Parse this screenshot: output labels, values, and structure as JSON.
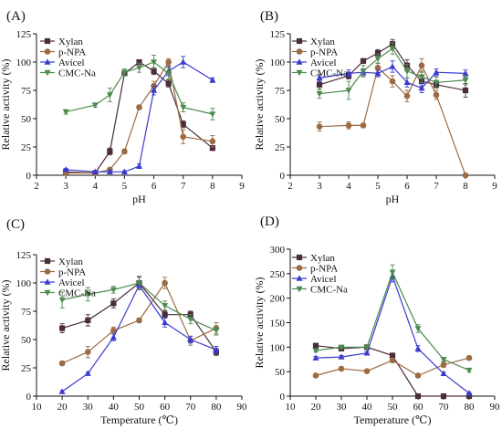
{
  "chart_data": [
    {
      "type": "line",
      "panel_label": "(A)",
      "xlabel": "pH",
      "ylabel": "Relative activity (%)",
      "xlim": [
        2,
        9
      ],
      "ylim": [
        0,
        125
      ],
      "xticks": [
        2,
        3,
        4,
        5,
        6,
        7,
        8,
        9
      ],
      "yticks": [
        0,
        25,
        50,
        75,
        100,
        125
      ],
      "legend_position": "top-left",
      "grid": false,
      "series": [
        {
          "name": "Xylan",
          "color": "#4a2c3a",
          "marker": "square",
          "x": [
            3,
            4,
            4.5,
            5,
            5.5,
            6,
            6.5,
            7,
            8
          ],
          "y": [
            3,
            2,
            21,
            90,
            100,
            92,
            81,
            45,
            24
          ],
          "err": [
            1,
            1,
            3,
            2,
            2,
            3,
            3,
            3,
            2
          ]
        },
        {
          "name": "p-NPA",
          "color": "#9b6b43",
          "marker": "circle",
          "x": [
            3,
            4,
            4.5,
            5,
            5.5,
            6,
            6.5,
            7,
            8
          ],
          "y": [
            2,
            2,
            5,
            21,
            60,
            79,
            100,
            34,
            30
          ],
          "err": [
            1,
            1,
            1,
            2,
            2,
            4,
            3,
            6,
            5
          ]
        },
        {
          "name": "Avicel",
          "color": "#3a3ad0",
          "marker": "triangle-up",
          "x": [
            3,
            4,
            4.5,
            5,
            5.5,
            6,
            6.5,
            7,
            8
          ],
          "y": [
            5,
            3,
            3,
            3,
            8,
            75,
            92,
            100,
            84
          ],
          "err": [
            1,
            1,
            1,
            1,
            2,
            4,
            4,
            5,
            2
          ]
        },
        {
          "name": "CMC-Na",
          "color": "#4d8a4d",
          "marker": "triangle-down",
          "x": [
            3,
            4,
            4.5,
            5,
            5.5,
            6,
            6.5,
            7,
            8
          ],
          "y": [
            56,
            62,
            71,
            91,
            95,
            100,
            90,
            60,
            54
          ],
          "err": [
            2,
            2,
            6,
            3,
            4,
            6,
            5,
            4,
            5
          ]
        }
      ]
    },
    {
      "type": "line",
      "panel_label": "(B)",
      "xlabel": "pH",
      "ylabel": "Relative activity (%)",
      "xlim": [
        2,
        9
      ],
      "ylim": [
        0,
        125
      ],
      "xticks": [
        2,
        3,
        4,
        5,
        6,
        7,
        8,
        9
      ],
      "yticks": [
        0,
        25,
        50,
        75,
        100,
        125
      ],
      "legend_position": "top-left",
      "grid": false,
      "series": [
        {
          "name": "Xylan",
          "color": "#4a2c3a",
          "marker": "square",
          "x": [
            3,
            4,
            4.5,
            5,
            5.5,
            6,
            6.5,
            7,
            8
          ],
          "y": [
            80,
            88,
            101,
            108,
            116,
            97,
            83,
            80,
            75
          ],
          "err": [
            4,
            3,
            2,
            3,
            4,
            5,
            4,
            3,
            6
          ]
        },
        {
          "name": "p-NPA",
          "color": "#9b6b43",
          "marker": "circle",
          "x": [
            3,
            4,
            4.5,
            5,
            5.5,
            6,
            6.5,
            7,
            8
          ],
          "y": [
            43,
            44,
            44,
            95,
            83,
            70,
            97,
            71,
            0
          ],
          "err": [
            4,
            3,
            2,
            4,
            5,
            5,
            6,
            4,
            1
          ]
        },
        {
          "name": "Avicel",
          "color": "#3a3ad0",
          "marker": "triangle-up",
          "x": [
            3,
            4,
            4.5,
            5,
            5.5,
            6,
            6.5,
            7,
            8
          ],
          "y": [
            86,
            90,
            91,
            90,
            96,
            82,
            77,
            91,
            90
          ],
          "err": [
            3,
            3,
            3,
            3,
            5,
            4,
            4,
            3,
            3
          ]
        },
        {
          "name": "CMC-Na",
          "color": "#4d8a4d",
          "marker": "triangle-down",
          "x": [
            3,
            4,
            4.5,
            5,
            5.5,
            6,
            6.5,
            7,
            8
          ],
          "y": [
            72,
            75,
            92,
            103,
            112,
            92,
            87,
            82,
            84
          ],
          "err": [
            4,
            8,
            5,
            4,
            5,
            6,
            5,
            5,
            4
          ]
        }
      ]
    },
    {
      "type": "line",
      "panel_label": "(C)",
      "xlabel": "Temperature (℃)",
      "ylabel": "Relative activity (%)",
      "xlim": [
        10,
        90
      ],
      "ylim": [
        0,
        125
      ],
      "xticks": [
        10,
        20,
        30,
        40,
        50,
        60,
        70,
        80,
        90
      ],
      "yticks": [
        0,
        25,
        50,
        75,
        100,
        125
      ],
      "legend_position": "top-left",
      "grid": false,
      "series": [
        {
          "name": "Xylan",
          "color": "#4a2c3a",
          "marker": "square",
          "x": [
            20,
            30,
            40,
            50,
            60,
            70,
            80
          ],
          "y": [
            60,
            67,
            82,
            100,
            72,
            72,
            39
          ],
          "err": [
            4,
            5,
            4,
            5,
            3,
            3,
            3
          ]
        },
        {
          "name": "p-NPA",
          "color": "#9b6b43",
          "marker": "circle",
          "x": [
            20,
            30,
            40,
            50,
            60,
            70,
            80
          ],
          "y": [
            29,
            39,
            58,
            67,
            100,
            49,
            60
          ],
          "err": [
            2,
            5,
            3,
            2,
            5,
            4,
            5
          ]
        },
        {
          "name": "Avicel",
          "color": "#3a3ad0",
          "marker": "triangle-up",
          "x": [
            20,
            30,
            40,
            50,
            60,
            70,
            80
          ],
          "y": [
            4,
            20,
            52,
            98,
            65,
            50,
            41
          ],
          "err": [
            1,
            1,
            3,
            4,
            4,
            3,
            3
          ]
        },
        {
          "name": "CMC-Na",
          "color": "#4d8a4d",
          "marker": "triangle-down",
          "x": [
            20,
            30,
            40,
            50,
            60,
            70,
            80
          ],
          "y": [
            85,
            90,
            94,
            100,
            80,
            68,
            58
          ],
          "err": [
            7,
            6,
            3,
            6,
            4,
            4,
            4
          ]
        }
      ]
    },
    {
      "type": "line",
      "panel_label": "(D)",
      "xlabel": "Temperature (℃)",
      "ylabel": "Relative activity (%)",
      "xlim": [
        10,
        90
      ],
      "ylim": [
        0,
        300
      ],
      "xticks": [
        10,
        20,
        30,
        40,
        50,
        60,
        70,
        80,
        90
      ],
      "yticks": [
        0,
        50,
        100,
        150,
        200,
        250,
        300
      ],
      "legend_position": "top-left",
      "grid": false,
      "series": [
        {
          "name": "Xylan",
          "color": "#4a2c3a",
          "marker": "square",
          "x": [
            20,
            30,
            40,
            50,
            60,
            70,
            80
          ],
          "y": [
            103,
            97,
            100,
            83,
            0,
            0,
            0
          ],
          "err": [
            3,
            3,
            3,
            3,
            1,
            1,
            1
          ]
        },
        {
          "name": "p-NPA",
          "color": "#9b6b43",
          "marker": "circle",
          "x": [
            20,
            30,
            40,
            50,
            60,
            70,
            80
          ],
          "y": [
            42,
            56,
            51,
            73,
            42,
            64,
            78
          ],
          "err": [
            2,
            3,
            3,
            4,
            3,
            5,
            4
          ]
        },
        {
          "name": "Avicel",
          "color": "#3a3ad0",
          "marker": "triangle-up",
          "x": [
            20,
            30,
            40,
            50,
            60,
            70,
            80
          ],
          "y": [
            78,
            80,
            88,
            245,
            97,
            46,
            6
          ],
          "err": [
            3,
            3,
            3,
            12,
            6,
            3,
            2
          ]
        },
        {
          "name": "CMC-Na",
          "color": "#4d8a4d",
          "marker": "triangle-down",
          "x": [
            20,
            30,
            40,
            50,
            60,
            70,
            80
          ],
          "y": [
            93,
            100,
            100,
            253,
            138,
            75,
            53
          ],
          "err": [
            3,
            3,
            3,
            15,
            8,
            4,
            4
          ]
        }
      ]
    }
  ]
}
